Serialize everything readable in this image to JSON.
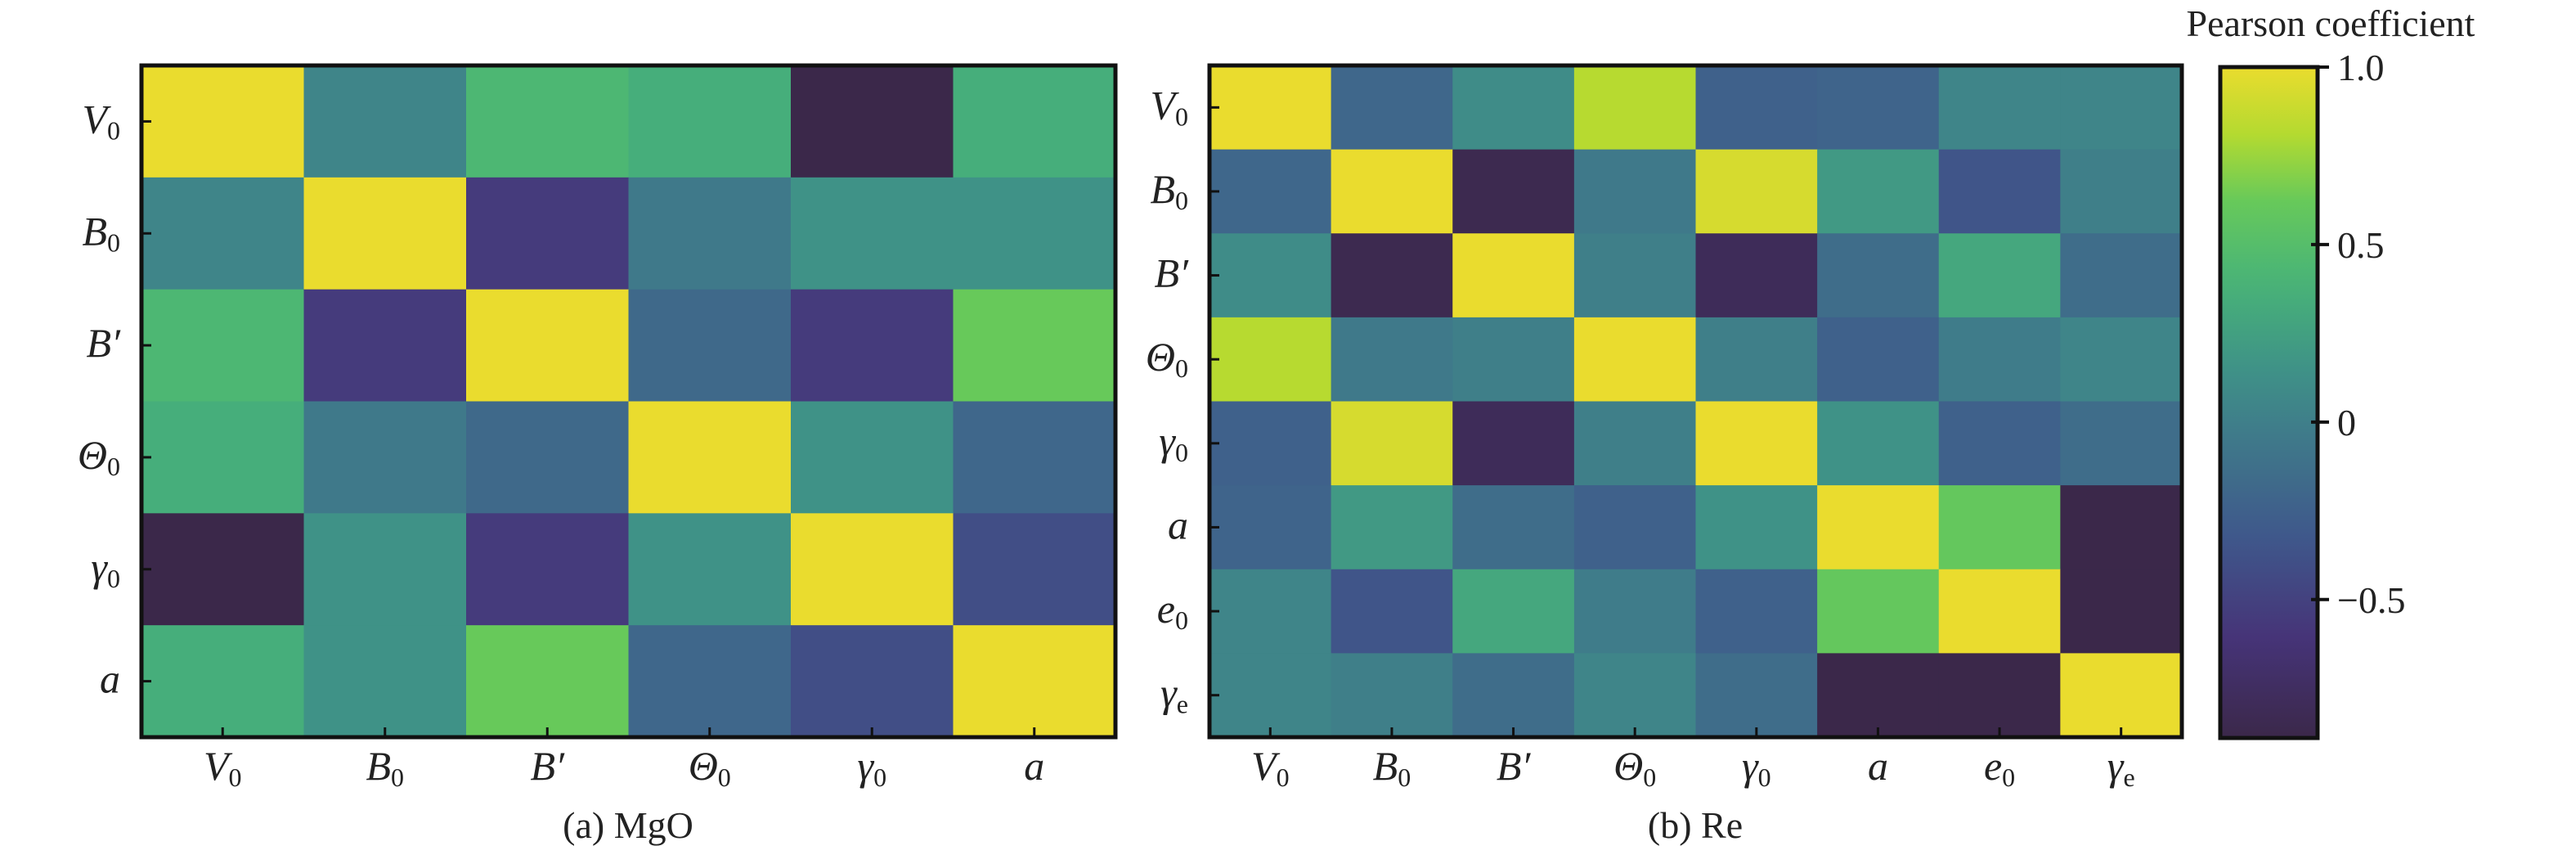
{
  "colorbar": {
    "title": "Pearson coefficient",
    "range": [
      -0.89,
      1.0
    ],
    "ticks": [
      1.0,
      0.5,
      0,
      -0.5
    ],
    "tick_labels": [
      "1.0",
      "0.5",
      "0",
      "−0.5"
    ],
    "colormap": "viridis"
  },
  "chart_data": [
    {
      "type": "heatmap",
      "caption": "(a) MgO",
      "labels": [
        {
          "main": "V",
          "sub": "0"
        },
        {
          "main": "B",
          "sub": "0"
        },
        {
          "main": "B′",
          "sub": ""
        },
        {
          "main": "Θ",
          "sub": "0"
        },
        {
          "main": "γ",
          "sub": "0"
        },
        {
          "main": "a",
          "sub": ""
        }
      ],
      "values": [
        [
          1.0,
          0.05,
          0.43,
          0.35,
          -0.9,
          0.35
        ],
        [
          0.05,
          1.0,
          -0.55,
          -0.05,
          0.15,
          0.15
        ],
        [
          0.43,
          -0.55,
          1.0,
          -0.18,
          -0.55,
          0.62
        ],
        [
          0.35,
          -0.05,
          -0.18,
          1.0,
          0.15,
          -0.2
        ],
        [
          -0.9,
          0.15,
          -0.55,
          0.15,
          1.0,
          -0.4
        ],
        [
          0.35,
          0.15,
          0.62,
          -0.2,
          -0.4,
          1.0
        ]
      ]
    },
    {
      "type": "heatmap",
      "caption": "(b) Re",
      "labels": [
        {
          "main": "V",
          "sub": "0"
        },
        {
          "main": "B",
          "sub": "0"
        },
        {
          "main": "B′",
          "sub": ""
        },
        {
          "main": "Θ",
          "sub": "0"
        },
        {
          "main": "γ",
          "sub": "0"
        },
        {
          "main": "a",
          "sub": ""
        },
        {
          "main": "e",
          "sub": "0"
        },
        {
          "main": "γ",
          "sub": "e"
        }
      ],
      "values": [
        [
          1.0,
          -0.2,
          0.1,
          0.82,
          -0.25,
          -0.22,
          0.05,
          0.05
        ],
        [
          -0.2,
          1.0,
          -0.85,
          -0.05,
          0.93,
          0.2,
          -0.35,
          0.0
        ],
        [
          0.1,
          -0.85,
          1.0,
          0.0,
          -0.8,
          -0.15,
          0.3,
          -0.15
        ],
        [
          0.82,
          -0.05,
          0.0,
          1.0,
          0.0,
          -0.25,
          -0.02,
          0.05
        ],
        [
          -0.25,
          0.93,
          -0.8,
          0.0,
          1.0,
          0.15,
          -0.25,
          -0.15
        ],
        [
          -0.22,
          0.2,
          -0.15,
          -0.25,
          0.15,
          1.0,
          0.6,
          -0.9
        ],
        [
          0.05,
          -0.35,
          0.3,
          -0.02,
          -0.25,
          0.6,
          1.0,
          -0.9
        ],
        [
          0.05,
          0.0,
          -0.15,
          0.05,
          -0.15,
          -0.9,
          -0.9,
          1.0
        ]
      ]
    }
  ]
}
